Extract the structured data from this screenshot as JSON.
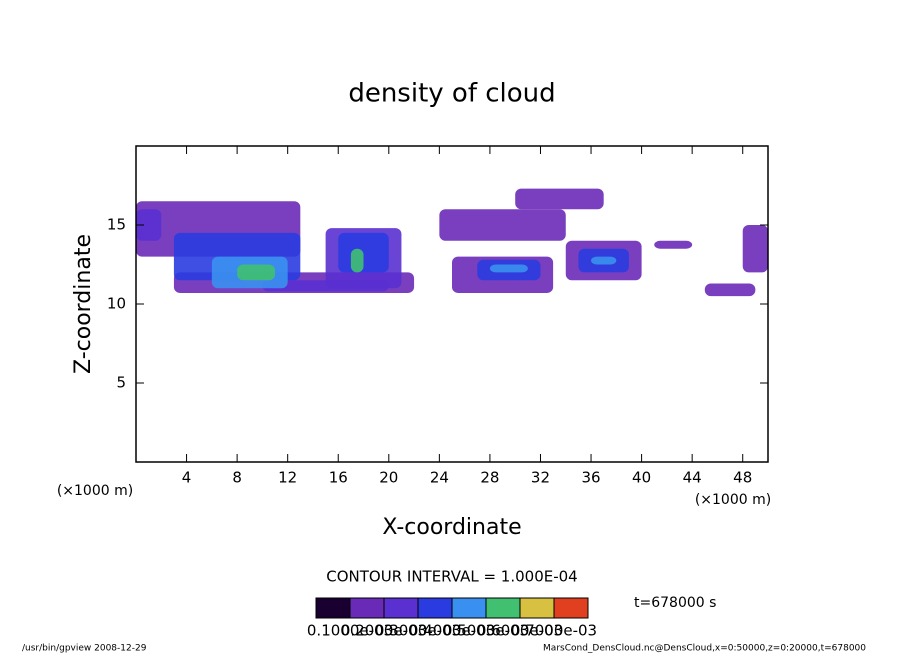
{
  "chart_data": {
    "type": "shade",
    "title": "density of cloud",
    "xlabel": "X-coordinate",
    "ylabel": "Z-coordinate",
    "xunit": "(×1000 m)",
    "yunit": "(×1000 m)",
    "xlim": [
      0,
      50
    ],
    "ylim": [
      0,
      20
    ],
    "xticks": [
      4,
      8,
      12,
      16,
      20,
      24,
      28,
      32,
      36,
      40,
      44,
      48
    ],
    "yticks": [
      5,
      10,
      15
    ],
    "cells": [
      {
        "x": [
          0,
          13
        ],
        "z": [
          13,
          16.5
        ],
        "value": 0.00015
      },
      {
        "x": [
          3,
          22
        ],
        "z": [
          10.7,
          12
        ],
        "value": 0.00015
      },
      {
        "x": [
          24,
          34
        ],
        "z": [
          14,
          16
        ],
        "value": 0.00015
      },
      {
        "x": [
          30,
          37
        ],
        "z": [
          16,
          17.3
        ],
        "value": 0.00015
      },
      {
        "x": [
          25,
          33
        ],
        "z": [
          10.7,
          13
        ],
        "value": 0.00015
      },
      {
        "x": [
          34,
          40
        ],
        "z": [
          11.5,
          14
        ],
        "value": 0.00015
      },
      {
        "x": [
          41,
          44
        ],
        "z": [
          13.5,
          14
        ],
        "value": 0.00015
      },
      {
        "x": [
          45,
          49
        ],
        "z": [
          10.5,
          11.3
        ],
        "value": 0.00015
      },
      {
        "x": [
          48,
          50
        ],
        "z": [
          12,
          15
        ],
        "value": 0.00015
      },
      {
        "x": [
          15,
          21
        ],
        "z": [
          11,
          14.8
        ],
        "value": 0.00025
      },
      {
        "x": [
          0,
          2
        ],
        "z": [
          14,
          16
        ],
        "value": 0.00025
      },
      {
        "x": [
          10,
          20
        ],
        "z": [
          10.8,
          11.5
        ],
        "value": 0.00025
      },
      {
        "x": [
          3,
          13
        ],
        "z": [
          11.5,
          14.5
        ],
        "value": 0.00035
      },
      {
        "x": [
          16,
          20
        ],
        "z": [
          12,
          14.5
        ],
        "value": 0.00035
      },
      {
        "x": [
          27,
          32
        ],
        "z": [
          11.5,
          12.8
        ],
        "value": 0.00035
      },
      {
        "x": [
          35,
          39
        ],
        "z": [
          12,
          13.5
        ],
        "value": 0.00035
      },
      {
        "x": [
          6,
          12
        ],
        "z": [
          11,
          13
        ],
        "value": 0.00045
      },
      {
        "x": [
          28,
          31
        ],
        "z": [
          12,
          12.5
        ],
        "value": 0.00045
      },
      {
        "x": [
          36,
          38
        ],
        "z": [
          12.5,
          13
        ],
        "value": 0.00045
      },
      {
        "x": [
          8,
          11
        ],
        "z": [
          11.5,
          12.5
        ],
        "value": 0.00055
      },
      {
        "x": [
          17,
          18
        ],
        "z": [
          12,
          13.5
        ],
        "value": 0.00055
      }
    ],
    "colorbar": {
      "lim": [
        0,
        0.0008
      ],
      "ticks": [
        {
          "value": 0.0001,
          "label": "0.1000e-03"
        },
        {
          "value": 0.0002,
          "label": "0.2000e-03"
        },
        {
          "value": 0.0003,
          "label": "0.3000e-03"
        },
        {
          "value": 0.0004,
          "label": "0.4000e-03"
        },
        {
          "value": 0.0005,
          "label": "0.5000e-03"
        },
        {
          "value": 0.0006,
          "label": "0.6000e-03"
        },
        {
          "value": 0.0007,
          "label": "0.7000e-03"
        }
      ],
      "colors": [
        "#1a0030",
        "#6a2ab8",
        "#5a30d0",
        "#2a3ce0",
        "#3a90f0",
        "#40c070",
        "#d8c040",
        "#e04020"
      ]
    },
    "contour_interval": "CONTOUR INTERVAL = 1.000E-04",
    "time": "t=678000 s",
    "footer_left": "/usr/bin/gpview  2008-12-29",
    "footer_right": "MarsCond_DensCloud.nc@DensCloud,x=0:50000,z=0:20000,t=678000"
  }
}
